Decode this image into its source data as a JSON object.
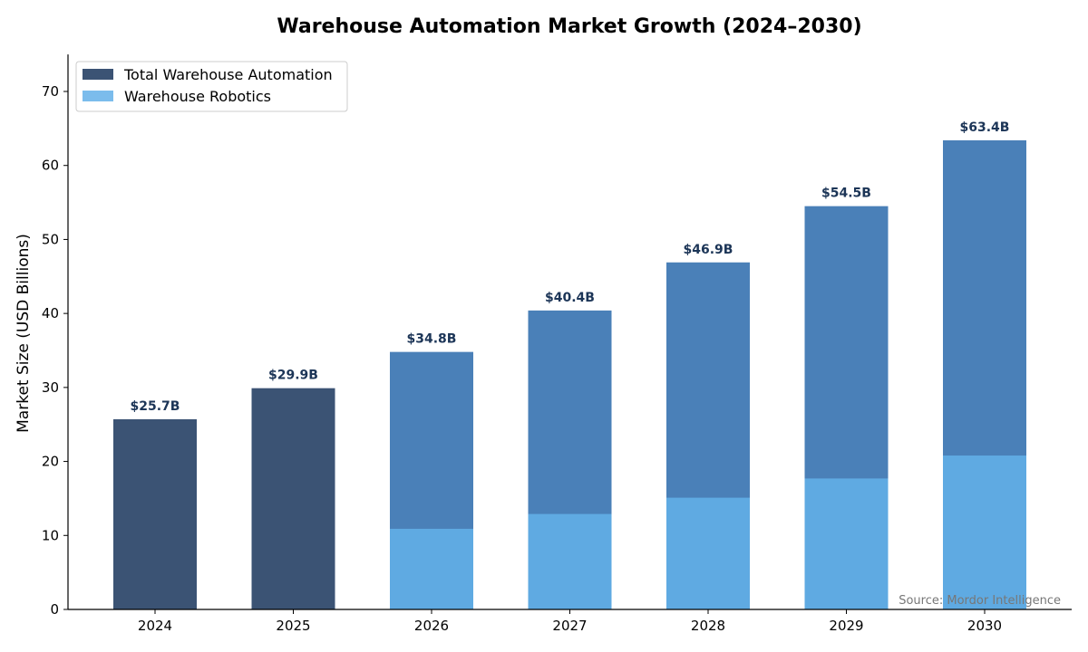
{
  "chart_data": {
    "type": "bar",
    "stacked": "overlay",
    "title": "Warehouse Automation Market Growth (2024–2030)",
    "xlabel": "",
    "ylabel": "Market Size (USD Billions)",
    "ylim": [
      0,
      75
    ],
    "yticks": [
      0,
      10,
      20,
      30,
      40,
      50,
      60,
      70
    ],
    "categories": [
      "2024",
      "2025",
      "2026",
      "2027",
      "2028",
      "2029",
      "2030"
    ],
    "series": [
      {
        "name": "Total Warehouse Automation",
        "values": [
          25.7,
          29.9,
          34.8,
          40.4,
          46.9,
          54.5,
          63.4
        ],
        "color": "#3b5374",
        "forecast_color": "#4a80b8"
      },
      {
        "name": "Warehouse Robotics",
        "values": [
          null,
          null,
          10.9,
          12.9,
          15.1,
          17.7,
          20.8
        ],
        "color": "#5faae2",
        "legend_color": "#7bbcec"
      }
    ],
    "data_labels": [
      "$25.7B",
      "$29.9B",
      "$34.8B",
      "$40.4B",
      "$46.9B",
      "$54.5B",
      "$63.4B"
    ],
    "data_label_color": "#1c3557",
    "legend_position": "top-left",
    "grid": false,
    "annotation": "Source: Mordor Intelligence"
  }
}
